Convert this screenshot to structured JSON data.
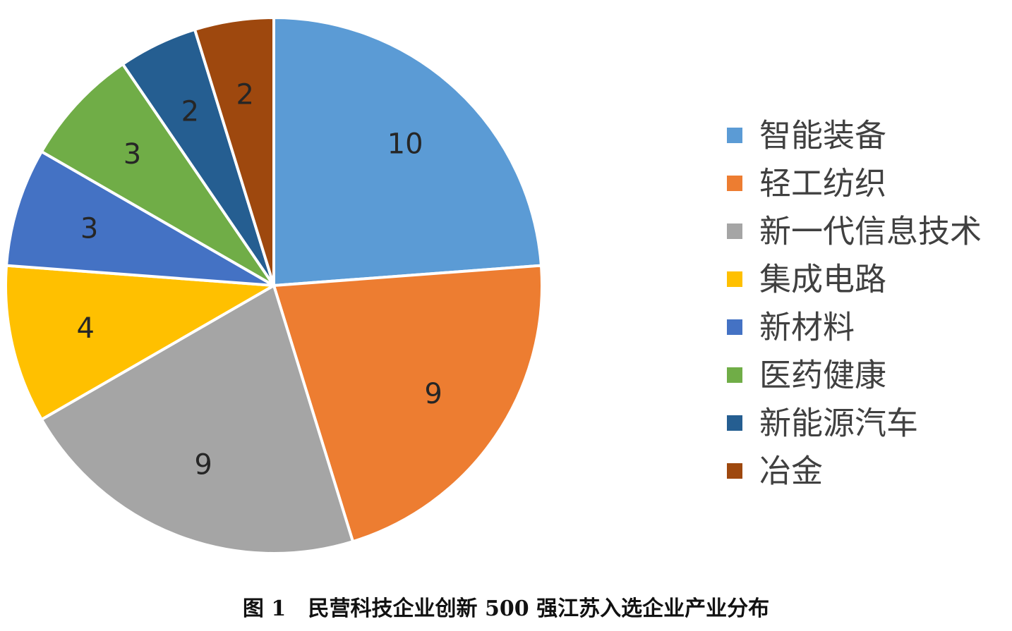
{
  "chart_data": {
    "type": "pie",
    "title": "",
    "categories": [
      "智能装备",
      "轻工纺织",
      "新一代信息技术",
      "集成电路",
      "新材料",
      "医药健康",
      "新能源汽车",
      "冶金"
    ],
    "values": [
      10,
      9,
      9,
      4,
      3,
      3,
      2,
      2
    ],
    "colors": [
      "#5B9BD5",
      "#ED7D31",
      "#A5A5A5",
      "#FFC000",
      "#4472C4",
      "#70AD47",
      "#255E91",
      "#9E480E"
    ],
    "data_labels_shown": true,
    "legend_position": "right",
    "start_angle": "12 o'clock",
    "direction": "clockwise"
  },
  "caption": {
    "text": "图 1   民营科技企业创新 500 强江苏入选企业产业分布"
  }
}
